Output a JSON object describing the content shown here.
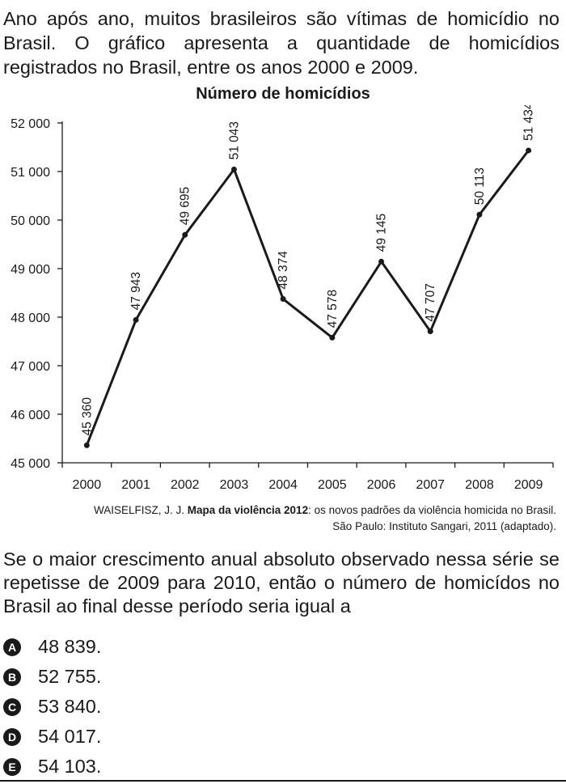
{
  "intro_text": "Ano após ano, muitos brasileiros são vítimas de homicídio no Brasil. O gráfico apresenta a quantidade de homicídios registrados no Brasil, entre os anos 2000 e 2009.",
  "chart_data": {
    "type": "line",
    "title": "Número de homicídios",
    "xlabel": "",
    "ylabel": "",
    "x": [
      "2000",
      "2001",
      "2002",
      "2003",
      "2004",
      "2005",
      "2006",
      "2007",
      "2008",
      "2009"
    ],
    "values": [
      45360,
      47943,
      49695,
      51043,
      48374,
      47578,
      49145,
      47707,
      50113,
      51434
    ],
    "data_labels": [
      "45 360",
      "47 943",
      "49 695",
      "51 043",
      "48 374",
      "47 578",
      "49 145",
      "47 707",
      "50 113",
      "51 434"
    ],
    "y_ticks": [
      45000,
      46000,
      47000,
      48000,
      49000,
      50000,
      51000,
      52000
    ],
    "y_tick_labels": [
      "45 000",
      "46 000",
      "47 000",
      "48 000",
      "49 000",
      "50 000",
      "51 000",
      "52 000"
    ],
    "ylim": [
      45000,
      52000
    ],
    "grid": false,
    "line_color": "#1a1a1a"
  },
  "source": {
    "author": "WAISELFISZ, J. J.",
    "book_title": "Mapa da violência 2012",
    "rest": ": os novos padrões da violência homicida no Brasil.",
    "line2": "São Paulo: Instituto Sangari, 2011 (adaptado)."
  },
  "question_text": "Se o maior crescimento anual absoluto observado nessa série se repetisse de 2009 para 2010, então o número de homicídos no Brasil ao final desse período seria igual a",
  "options": [
    {
      "letter": "A",
      "text": "48 839."
    },
    {
      "letter": "B",
      "text": "52 755."
    },
    {
      "letter": "C",
      "text": "53 840."
    },
    {
      "letter": "D",
      "text": "54 017."
    },
    {
      "letter": "E",
      "text": "54 103."
    }
  ]
}
